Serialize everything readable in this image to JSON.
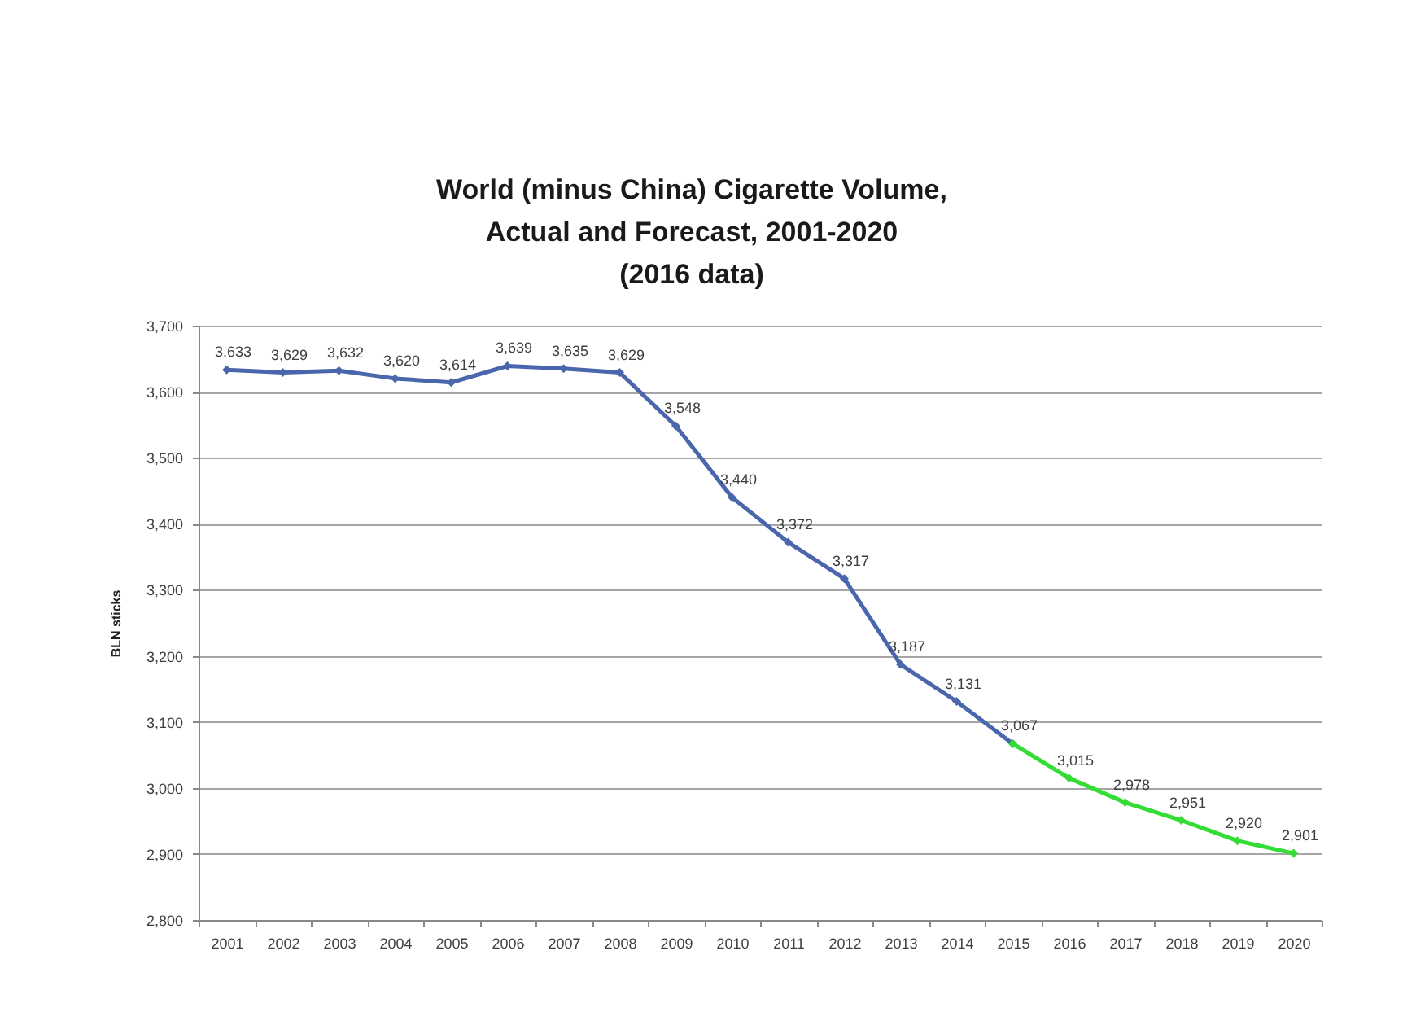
{
  "chart_data": {
    "type": "line",
    "title": "World (minus China) Cigarette Volume,\nActual and Forecast, 2001-2020\n(2016 data)",
    "ylabel": "BLN sticks",
    "categories": [
      "2001",
      "2002",
      "2003",
      "2004",
      "2005",
      "2006",
      "2007",
      "2008",
      "2009",
      "2010",
      "2011",
      "2012",
      "2013",
      "2014",
      "2015",
      "2016",
      "2017",
      "2018",
      "2019",
      "2020"
    ],
    "series": [
      {
        "color": "#4a66ac",
        "values": [
          3633,
          3629,
          3632,
          3620,
          3614,
          3639,
          3635,
          3629,
          3548,
          3440,
          3372,
          3317,
          3187,
          3131,
          3067,
          null,
          null,
          null,
          null,
          null
        ],
        "value_labels": [
          "3,633",
          "3,629",
          "3,632",
          "3,620",
          "3,614",
          "3,639",
          "3,635",
          "3,629",
          "3,548",
          "3,440",
          "3,372",
          "3,317",
          "3,187",
          "3,131",
          "3,067",
          null,
          null,
          null,
          null,
          null
        ]
      },
      {
        "color": "#33dd33",
        "values": [
          null,
          null,
          null,
          null,
          null,
          null,
          null,
          null,
          null,
          null,
          null,
          null,
          null,
          null,
          3067,
          3015,
          2978,
          2951,
          2920,
          2901
        ],
        "value_labels": [
          null,
          null,
          null,
          null,
          null,
          null,
          null,
          null,
          null,
          null,
          null,
          null,
          null,
          null,
          null,
          "3,015",
          "2,978",
          "2,951",
          "2,920",
          "2,901"
        ]
      }
    ],
    "ylim": [
      2800,
      3700
    ],
    "yticks": [
      {
        "value": 2800,
        "label": "2,800"
      },
      {
        "value": 2900,
        "label": "2,900"
      },
      {
        "value": 3000,
        "label": "3,000"
      },
      {
        "value": 3100,
        "label": "3,100"
      },
      {
        "value": 3200,
        "label": "3,200"
      },
      {
        "value": 3300,
        "label": "3,300"
      },
      {
        "value": 3400,
        "label": "3,400"
      },
      {
        "value": 3500,
        "label": "3,500"
      },
      {
        "value": 3600,
        "label": "3,600"
      },
      {
        "value": 3700,
        "label": "3,700"
      }
    ],
    "grid": "y",
    "marker": "diamond",
    "line_style": "solid"
  }
}
